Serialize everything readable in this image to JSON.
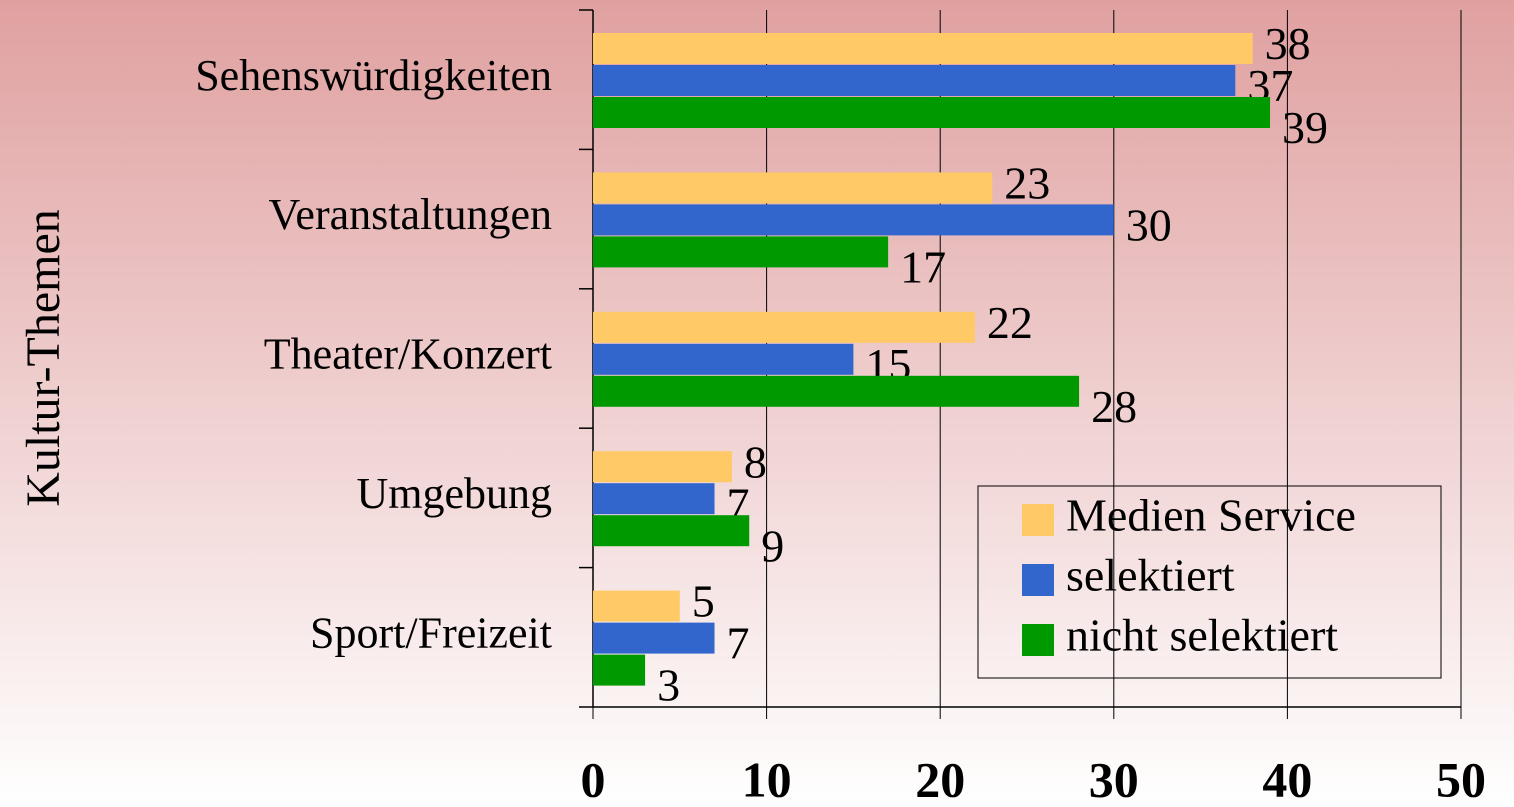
{
  "chart_data": {
    "type": "bar",
    "orientation": "horizontal",
    "y_axis_label": "Kultur-Themen",
    "categories": [
      "Sehenswürdigkeiten",
      "Veranstaltungen",
      "Theater/Konzert",
      "Umgebung",
      "Sport/Freizeit"
    ],
    "series": [
      {
        "name": "Medien Service",
        "color": "#ffc966",
        "values": [
          38,
          23,
          22,
          8,
          5
        ]
      },
      {
        "name": "selektiert",
        "color": "#3366cc",
        "values": [
          37,
          30,
          15,
          7,
          7
        ]
      },
      {
        "name": "nicht selektiert",
        "color": "#009900",
        "values": [
          39,
          17,
          28,
          9,
          3
        ]
      }
    ],
    "xlim": [
      0,
      50
    ],
    "xticks": [
      0,
      10,
      20,
      30,
      40,
      50
    ],
    "grid": true,
    "legend": "lower right"
  }
}
